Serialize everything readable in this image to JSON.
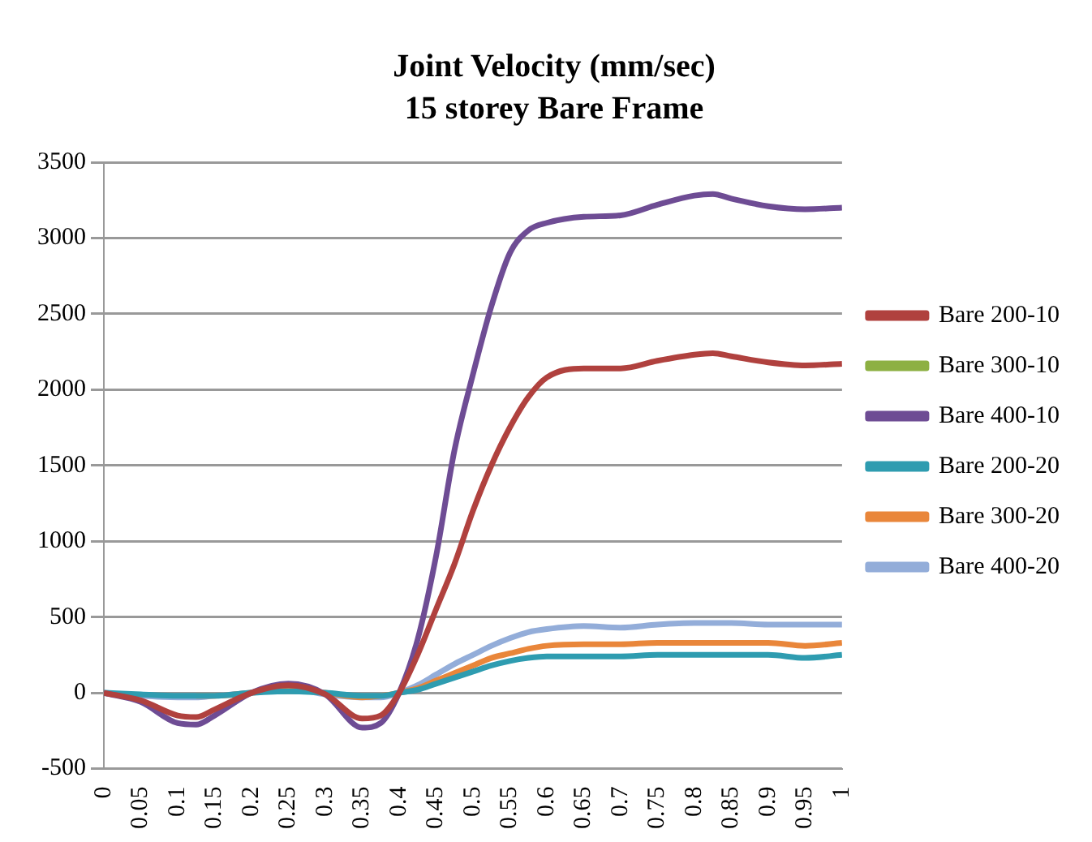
{
  "chart_data": {
    "type": "line",
    "title": "Joint Velocity (mm/sec)",
    "subtitle": "15 storey Bare Frame",
    "x": [
      0,
      0.05,
      0.1,
      0.125,
      0.15,
      0.2,
      0.25,
      0.3,
      0.35,
      0.375,
      0.4,
      0.425,
      0.45,
      0.475,
      0.5,
      0.525,
      0.55,
      0.575,
      0.6,
      0.65,
      0.7,
      0.75,
      0.8,
      0.825,
      0.85,
      0.9,
      0.95,
      1
    ],
    "series": [
      {
        "name": "Bare 200-10",
        "color": "#b0413e",
        "values": [
          0,
          -50,
          -150,
          -160,
          -110,
          0,
          50,
          -10,
          -170,
          -150,
          0,
          250,
          550,
          850,
          1200,
          1500,
          1750,
          1950,
          2080,
          2140,
          2140,
          2190,
          2230,
          2240,
          2220,
          2180,
          2160,
          2170
        ]
      },
      {
        "name": "Bare 300-10",
        "color": "#8db043",
        "values": [
          null,
          null,
          null,
          null,
          null,
          null,
          null,
          null,
          null,
          null,
          null,
          null,
          null,
          null,
          null,
          null,
          null,
          null,
          null,
          null,
          null,
          null,
          null,
          null,
          null,
          null,
          null,
          null
        ]
      },
      {
        "name": "Bare 400-10",
        "color": "#6e4c94",
        "values": [
          0,
          -60,
          -200,
          -210,
          -150,
          0,
          60,
          -10,
          -230,
          -200,
          0,
          350,
          900,
          1600,
          2100,
          2550,
          2900,
          3050,
          3100,
          3140,
          3150,
          3220,
          3280,
          3290,
          3260,
          3210,
          3190,
          3200
        ]
      },
      {
        "name": "Bare 200-20",
        "color": "#2e9cb0",
        "values": [
          0,
          -10,
          -20,
          -20,
          -20,
          0,
          10,
          0,
          -20,
          -20,
          0,
          20,
          60,
          100,
          140,
          180,
          210,
          230,
          240,
          240,
          240,
          250,
          250,
          250,
          250,
          250,
          230,
          250
        ]
      },
      {
        "name": "Bare 300-20",
        "color": "#e9863a",
        "values": [
          null,
          null,
          null,
          -20,
          -20,
          0,
          20,
          0,
          -30,
          -20,
          0,
          30,
          80,
          130,
          180,
          230,
          260,
          290,
          310,
          320,
          320,
          330,
          330,
          330,
          330,
          330,
          310,
          330
        ]
      },
      {
        "name": "Bare 400-20",
        "color": "#93add9",
        "values": [
          0,
          -20,
          -30,
          -30,
          -20,
          0,
          30,
          -10,
          -30,
          -30,
          0,
          50,
          120,
          190,
          250,
          310,
          360,
          400,
          420,
          440,
          430,
          450,
          460,
          460,
          460,
          450,
          450,
          450
        ]
      }
    ],
    "xlim": [
      0,
      1
    ],
    "xticks": [
      0,
      0.05,
      0.1,
      0.15,
      0.2,
      0.25,
      0.3,
      0.35,
      0.4,
      0.45,
      0.5,
      0.55,
      0.6,
      0.65,
      0.7,
      0.75,
      0.8,
      0.85,
      0.9,
      0.95,
      1
    ],
    "ylim": [
      -500,
      3500
    ],
    "yticks": [
      -500,
      0,
      500,
      1000,
      1500,
      2000,
      2500,
      3000,
      3500
    ],
    "grid": "y",
    "legend": "right",
    "marker": "none",
    "line_style": "solid"
  }
}
